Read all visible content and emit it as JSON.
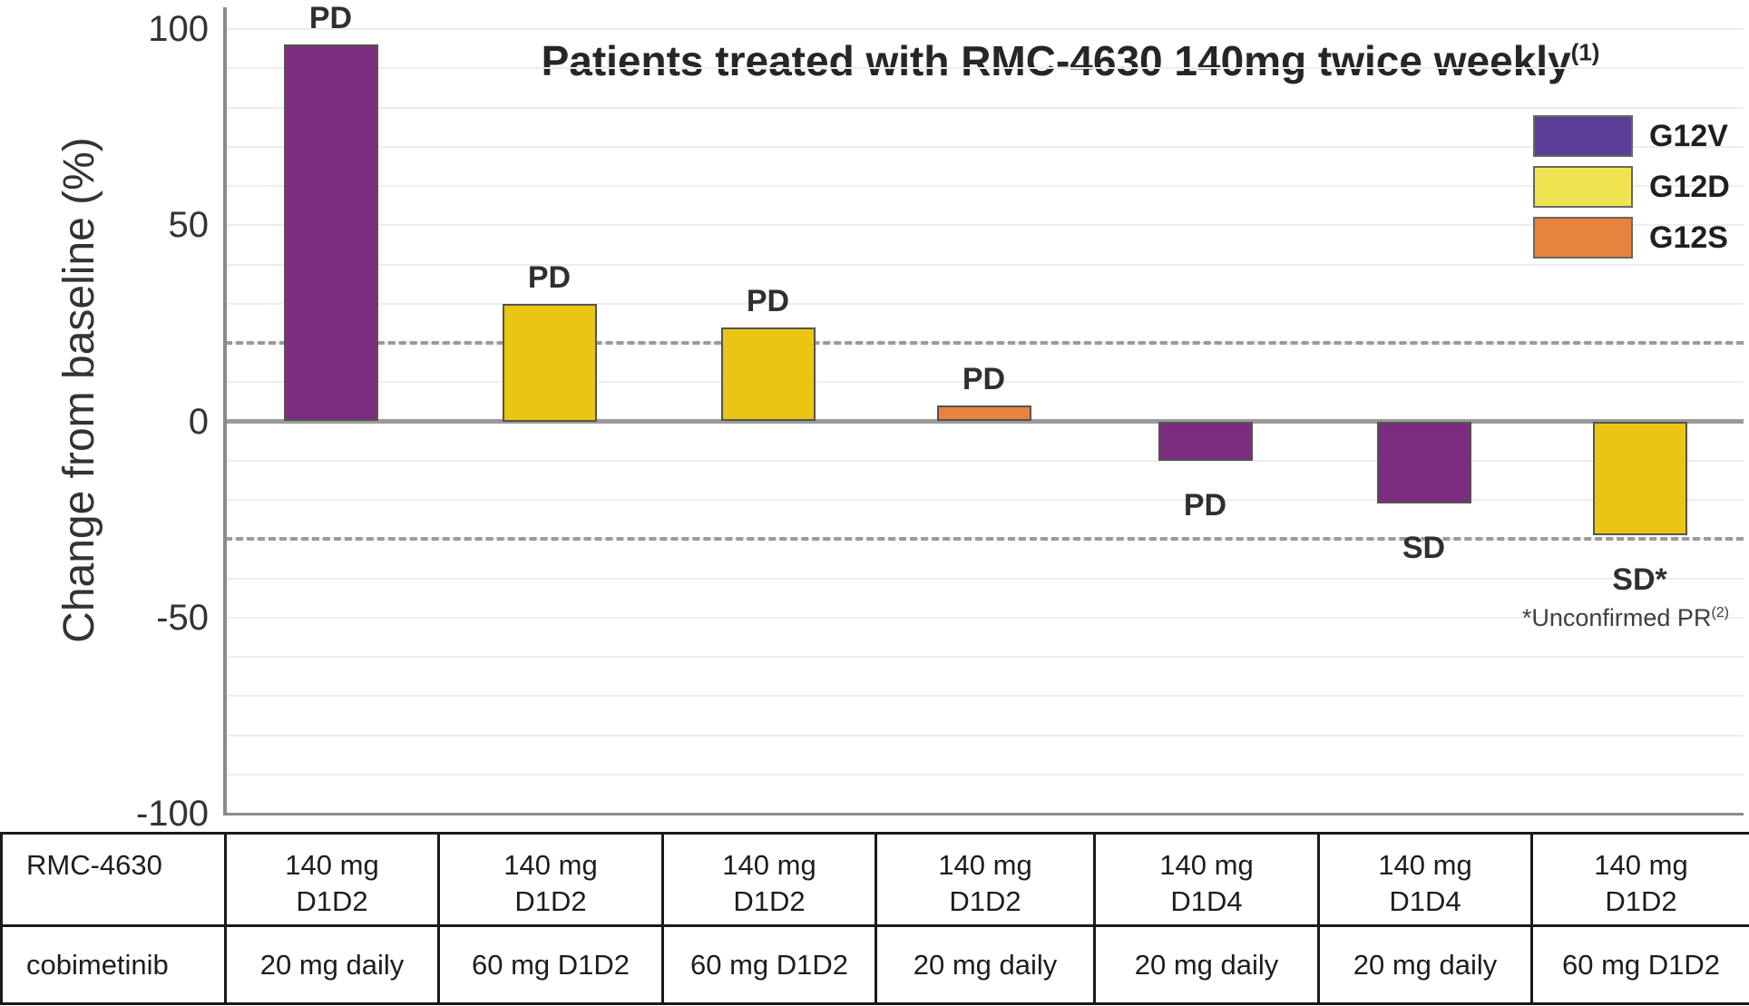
{
  "chart_data": {
    "type": "bar",
    "subtype": "waterfall",
    "title": "Patients treated with RMC-4630 140mg twice weekly",
    "title_superscript": "(1)",
    "ylabel": "Change from baseline (%)",
    "ylim": [
      -100,
      100
    ],
    "yticks": [
      100,
      50,
      0,
      -50,
      -100
    ],
    "grid": "on",
    "grid_step": 10,
    "reference_lines": [
      20,
      -30
    ],
    "legend_position": "top-right",
    "legend": [
      {
        "label": "G12V",
        "color": "#5b3e97"
      },
      {
        "label": "G12D",
        "color": "#f0e351"
      },
      {
        "label": "G12S",
        "color": "#e8833d"
      }
    ],
    "bars": [
      {
        "value": 96,
        "mutation": "G12V",
        "response": "PD",
        "color": "#7b2d80"
      },
      {
        "value": 30,
        "mutation": "G12D",
        "response": "PD",
        "color": "#e9c613"
      },
      {
        "value": 24,
        "mutation": "G12D",
        "response": "PD",
        "color": "#e9c613"
      },
      {
        "value": 4,
        "mutation": "G12S",
        "response": "PD",
        "color": "#e8833d"
      },
      {
        "value": -10,
        "mutation": "G12V",
        "response": "PD",
        "color": "#7b2d80"
      },
      {
        "value": -21,
        "mutation": "G12V",
        "response": "SD",
        "color": "#7b2d80"
      },
      {
        "value": -29,
        "mutation": "G12D",
        "response": "SD*",
        "color": "#e9c613"
      }
    ],
    "footnote": "*Unconfirmed PR",
    "footnote_superscript": "(2)"
  },
  "dose_table": {
    "rows": [
      {
        "header": "RMC-4630",
        "values": [
          [
            "140 mg",
            "D1D2"
          ],
          [
            "140 mg",
            "D1D2"
          ],
          [
            "140 mg",
            "D1D2"
          ],
          [
            "140 mg",
            "D1D2"
          ],
          [
            "140 mg",
            "D1D4"
          ],
          [
            "140 mg",
            "D1D4"
          ],
          [
            "140 mg",
            "D1D2"
          ]
        ]
      },
      {
        "header": "cobimetinib",
        "values": [
          [
            "20 mg daily"
          ],
          [
            "60 mg D1D2"
          ],
          [
            "60 mg D1D2"
          ],
          [
            "20 mg daily"
          ],
          [
            "20 mg daily"
          ],
          [
            "20 mg daily"
          ],
          [
            "60 mg D1D2"
          ]
        ]
      }
    ]
  }
}
